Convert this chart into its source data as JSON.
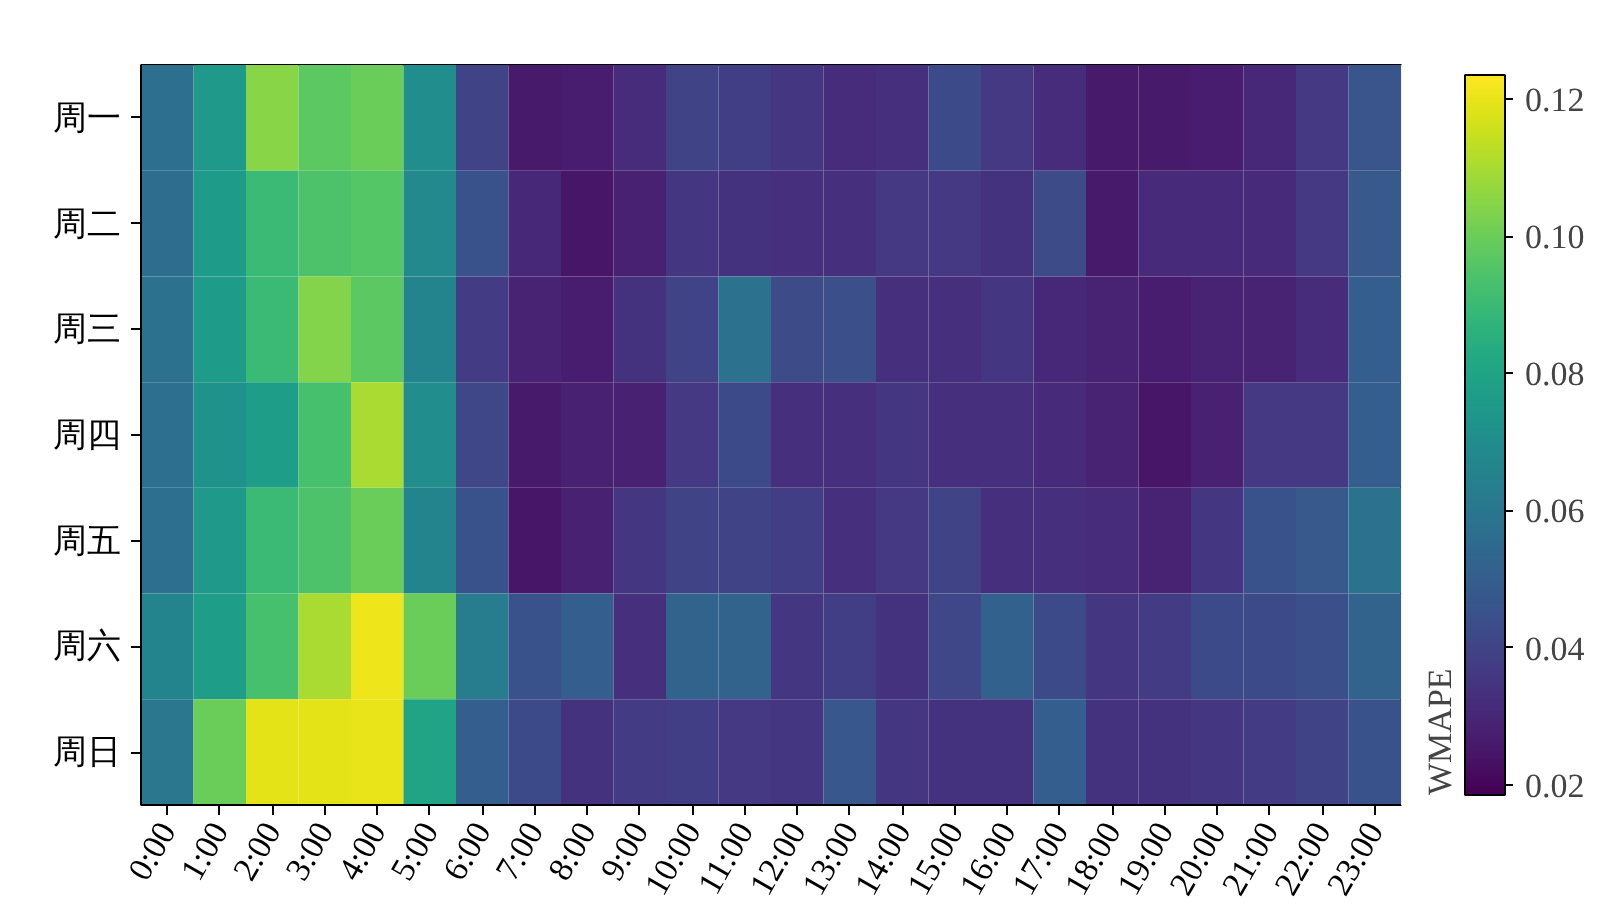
{
  "chart_data": {
    "type": "heatmap",
    "clabel": "WMAPE",
    "categories": [
      "0:00",
      "1:00",
      "2:00",
      "3:00",
      "4:00",
      "5:00",
      "6:00",
      "7:00",
      "8:00",
      "9:00",
      "10:00",
      "11:00",
      "12:00",
      "13:00",
      "14:00",
      "15:00",
      "16:00",
      "17:00",
      "18:00",
      "19:00",
      "20:00",
      "21:00",
      "22:00",
      "23:00"
    ],
    "y_categories": [
      "周一",
      "周二",
      "周三",
      "周四",
      "周五",
      "周六",
      "周日"
    ],
    "cells": [
      [
        0.057,
        0.075,
        0.105,
        0.097,
        0.1,
        0.07,
        0.04,
        0.026,
        0.027,
        0.032,
        0.04,
        0.038,
        0.035,
        0.032,
        0.033,
        0.042,
        0.036,
        0.032,
        0.026,
        0.026,
        0.027,
        0.03,
        0.036,
        0.046
      ],
      [
        0.056,
        0.076,
        0.09,
        0.094,
        0.096,
        0.068,
        0.045,
        0.03,
        0.025,
        0.028,
        0.035,
        0.034,
        0.033,
        0.033,
        0.036,
        0.036,
        0.034,
        0.043,
        0.026,
        0.031,
        0.031,
        0.031,
        0.036,
        0.048
      ],
      [
        0.058,
        0.076,
        0.09,
        0.104,
        0.097,
        0.066,
        0.037,
        0.029,
        0.027,
        0.034,
        0.04,
        0.058,
        0.043,
        0.044,
        0.033,
        0.033,
        0.035,
        0.03,
        0.029,
        0.027,
        0.029,
        0.029,
        0.032,
        0.05
      ],
      [
        0.057,
        0.072,
        0.077,
        0.093,
        0.11,
        0.07,
        0.041,
        0.026,
        0.028,
        0.028,
        0.036,
        0.042,
        0.033,
        0.033,
        0.035,
        0.033,
        0.033,
        0.031,
        0.029,
        0.025,
        0.028,
        0.036,
        0.036,
        0.05
      ],
      [
        0.057,
        0.075,
        0.09,
        0.094,
        0.1,
        0.066,
        0.045,
        0.025,
        0.028,
        0.035,
        0.04,
        0.04,
        0.038,
        0.033,
        0.036,
        0.04,
        0.033,
        0.033,
        0.032,
        0.029,
        0.035,
        0.045,
        0.048,
        0.058
      ],
      [
        0.066,
        0.077,
        0.093,
        0.11,
        0.121,
        0.1,
        0.063,
        0.045,
        0.05,
        0.033,
        0.052,
        0.052,
        0.035,
        0.038,
        0.034,
        0.041,
        0.051,
        0.042,
        0.035,
        0.037,
        0.042,
        0.042,
        0.044,
        0.052
      ],
      [
        0.06,
        0.1,
        0.119,
        0.119,
        0.12,
        0.08,
        0.05,
        0.042,
        0.034,
        0.037,
        0.038,
        0.036,
        0.035,
        0.047,
        0.035,
        0.034,
        0.034,
        0.05,
        0.034,
        0.034,
        0.035,
        0.037,
        0.04,
        0.045
      ]
    ],
    "clim": [
      0.0185,
      0.1235
    ],
    "cticks": [
      0.02,
      0.04,
      0.06,
      0.08,
      {
        "value": 0.1,
        "label": "0.10"
      },
      0.12
    ]
  }
}
